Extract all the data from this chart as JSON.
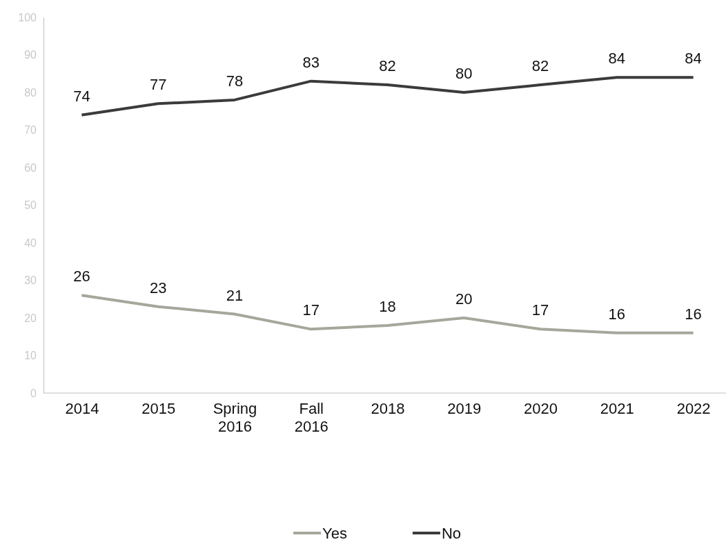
{
  "chart_data": {
    "type": "line",
    "categories": [
      "2014",
      "2015",
      "Spring 2016",
      "Fall 2016",
      "2018",
      "2019",
      "2020",
      "2021",
      "2022"
    ],
    "series": [
      {
        "name": "Yes",
        "color": "#a6a69b",
        "values": [
          26,
          23,
          21,
          17,
          18,
          20,
          17,
          16,
          16
        ]
      },
      {
        "name": "No",
        "color": "#3b3b3b",
        "values": [
          74,
          77,
          78,
          83,
          82,
          80,
          82,
          84,
          84
        ]
      }
    ],
    "ylim": [
      0,
      100
    ],
    "yticks": [
      0,
      10,
      20,
      30,
      40,
      50,
      60,
      70,
      80,
      90,
      100
    ],
    "grid": false,
    "legend": "bottom",
    "data_labels": true,
    "marker": "none",
    "line_style": "solid"
  }
}
